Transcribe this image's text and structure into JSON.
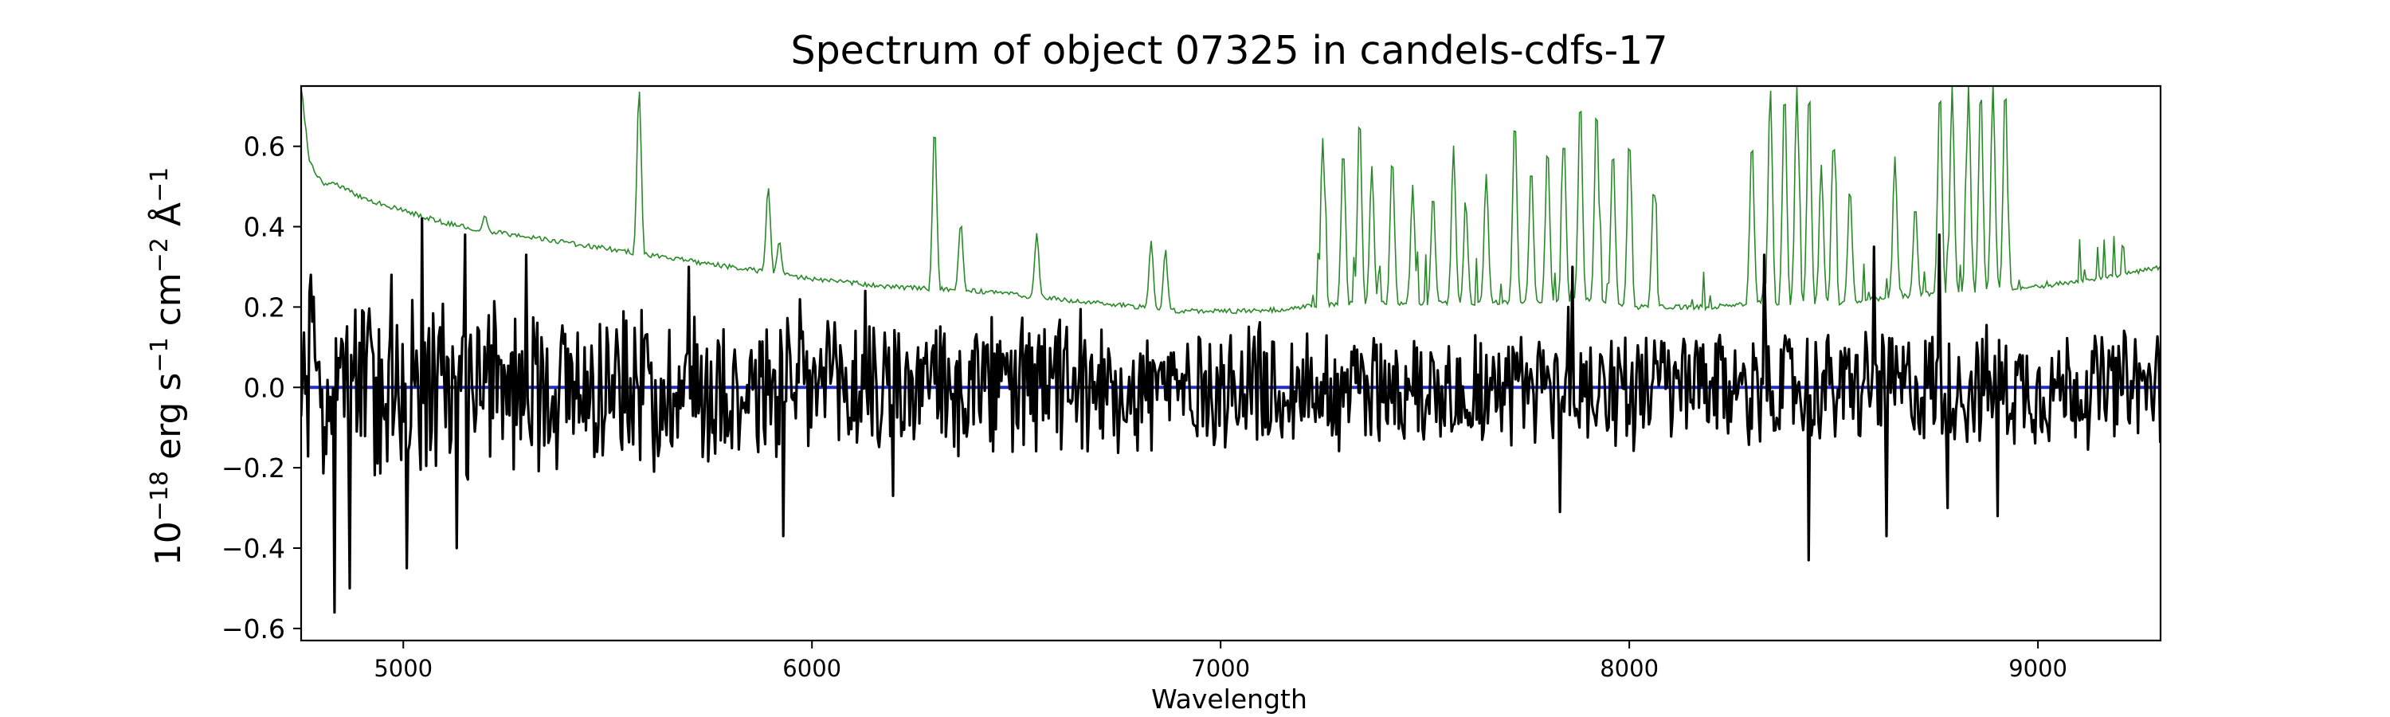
{
  "chart_data": {
    "type": "line",
    "title": "Spectrum of object 07325 in candels-cdfs-17",
    "xlabel": "Wavelength",
    "ylabel": {
      "parts": [
        "10",
        "−18",
        " erg s",
        "−1",
        " cm",
        "−2",
        " Å",
        "−1"
      ]
    },
    "xlim": [
      4750,
      9300
    ],
    "ylim": [
      -0.63,
      0.75
    ],
    "xticks": [
      5000,
      6000,
      7000,
      8000,
      9000
    ],
    "yticks": [
      -0.6,
      -0.4,
      -0.2,
      0.0,
      0.2,
      0.4,
      0.6
    ],
    "ytick_labels": [
      "−0.6",
      "−0.4",
      "−0.2",
      "0.0",
      "0.2",
      "0.4",
      "0.6"
    ],
    "grid": false,
    "legend": "none",
    "series": [
      {
        "role": "noise",
        "color": "#2a8a2a",
        "baseline": [
          [
            4750,
            0.75
          ],
          [
            4770,
            0.56
          ],
          [
            4800,
            0.51
          ],
          [
            4850,
            0.5
          ],
          [
            4900,
            0.47
          ],
          [
            5000,
            0.44
          ],
          [
            5100,
            0.41
          ],
          [
            5200,
            0.39
          ],
          [
            5400,
            0.36
          ],
          [
            5600,
            0.33
          ],
          [
            5800,
            0.3
          ],
          [
            6000,
            0.27
          ],
          [
            6200,
            0.25
          ],
          [
            6400,
            0.24
          ],
          [
            6600,
            0.22
          ],
          [
            6800,
            0.2
          ],
          [
            6900,
            0.19
          ],
          [
            7100,
            0.19
          ],
          [
            7200,
            0.2
          ],
          [
            7300,
            0.21
          ],
          [
            7600,
            0.21
          ],
          [
            7900,
            0.22
          ],
          [
            8000,
            0.2
          ],
          [
            8200,
            0.2
          ],
          [
            8300,
            0.21
          ],
          [
            8500,
            0.21
          ],
          [
            8700,
            0.23
          ],
          [
            9000,
            0.25
          ],
          [
            9200,
            0.28
          ],
          [
            9300,
            0.3
          ]
        ],
        "peaks": [
          [
            5200,
            0.43
          ],
          [
            5577,
            0.75
          ],
          [
            5893,
            0.5
          ],
          [
            5920,
            0.36
          ],
          [
            6300,
            0.65
          ],
          [
            6364,
            0.41
          ],
          [
            6550,
            0.38
          ],
          [
            6830,
            0.37
          ],
          [
            6865,
            0.34
          ],
          [
            7250,
            0.62
          ],
          [
            7300,
            0.6
          ],
          [
            7340,
            0.68
          ],
          [
            7370,
            0.55
          ],
          [
            7420,
            0.58
          ],
          [
            7470,
            0.5
          ],
          [
            7520,
            0.48
          ],
          [
            7570,
            0.6
          ],
          [
            7600,
            0.45
          ],
          [
            7650,
            0.53
          ],
          [
            7720,
            0.67
          ],
          [
            7760,
            0.55
          ],
          [
            7800,
            0.6
          ],
          [
            7840,
            0.63
          ],
          [
            7880,
            0.72
          ],
          [
            7920,
            0.7
          ],
          [
            7960,
            0.6
          ],
          [
            8000,
            0.62
          ],
          [
            8060,
            0.5
          ],
          [
            8300,
            0.62
          ],
          [
            8345,
            0.75
          ],
          [
            8380,
            0.75
          ],
          [
            8410,
            0.75
          ],
          [
            8440,
            0.75
          ],
          [
            8470,
            0.55
          ],
          [
            8500,
            0.62
          ],
          [
            8540,
            0.5
          ],
          [
            8650,
            0.57
          ],
          [
            8700,
            0.45
          ],
          [
            8760,
            0.75
          ],
          [
            8790,
            0.75
          ],
          [
            8830,
            0.75
          ],
          [
            8860,
            0.75
          ],
          [
            8890,
            0.75
          ],
          [
            8920,
            0.75
          ]
        ]
      },
      {
        "role": "flux",
        "color": "#000000",
        "mean": 0.0,
        "amplitude_blue": 0.22,
        "amplitude_red": 0.14,
        "extremes": [
          [
            4775,
            0.28
          ],
          [
            4830,
            -0.56
          ],
          [
            4870,
            -0.5
          ],
          [
            4970,
            0.28
          ],
          [
            5010,
            -0.45
          ],
          [
            5045,
            0.42
          ],
          [
            5130,
            -0.4
          ],
          [
            5150,
            0.38
          ],
          [
            5300,
            0.33
          ],
          [
            5700,
            0.3
          ],
          [
            5930,
            -0.37
          ],
          [
            6130,
            0.24
          ],
          [
            6200,
            -0.27
          ],
          [
            7850,
            0.2
          ],
          [
            7860,
            0.3
          ],
          [
            7830,
            -0.31
          ],
          [
            8330,
            0.33
          ],
          [
            8440,
            -0.43
          ],
          [
            8600,
            0.35
          ],
          [
            8630,
            -0.37
          ],
          [
            8760,
            0.38
          ],
          [
            8780,
            -0.3
          ],
          [
            8900,
            -0.32
          ]
        ]
      },
      {
        "role": "zero",
        "color": "#1f2fbf",
        "value": 0.0
      }
    ]
  }
}
